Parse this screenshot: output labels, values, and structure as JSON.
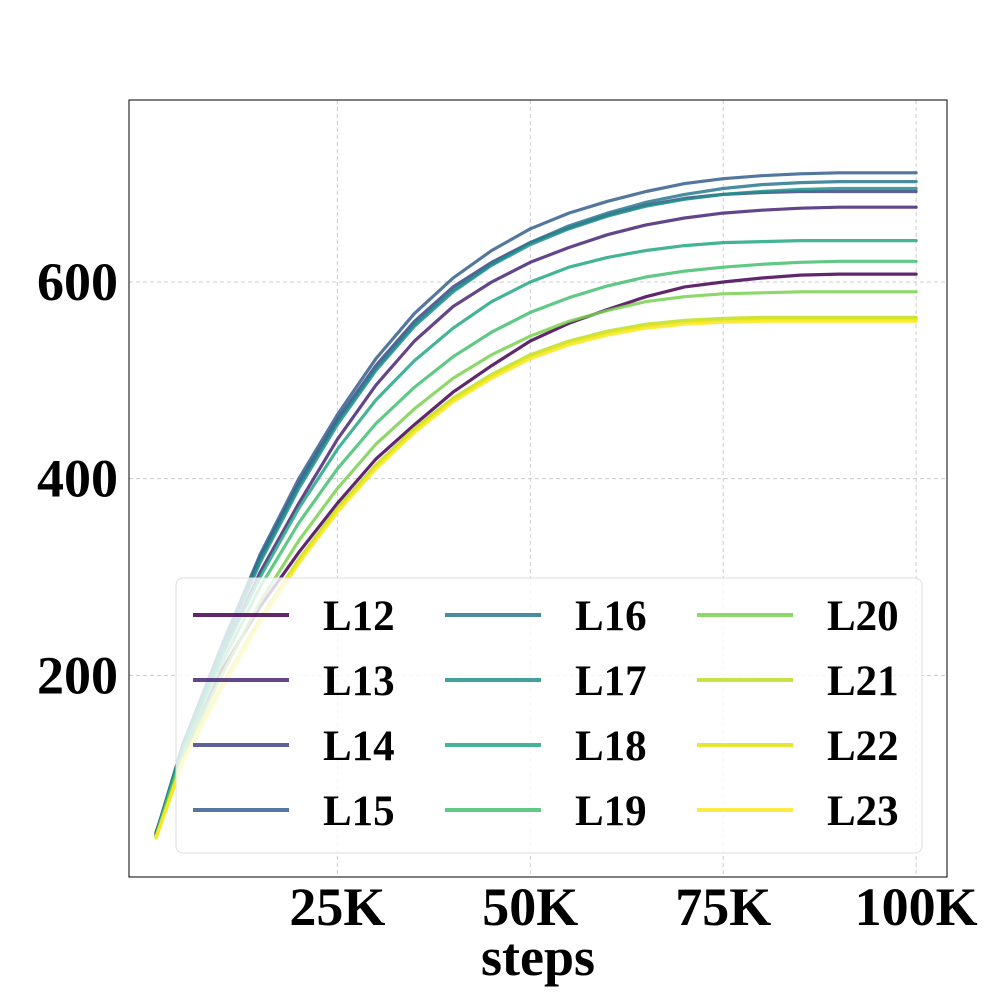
{
  "chart_data": {
    "type": "line",
    "title": "",
    "xlabel": "steps",
    "ylabel": "",
    "xlim": [
      -2000,
      104000
    ],
    "ylim": [
      -5,
      785
    ],
    "xticks": [
      {
        "value": 25000,
        "label": "25K"
      },
      {
        "value": 50000,
        "label": "50K"
      },
      {
        "value": 75000,
        "label": "75K"
      },
      {
        "value": 100000,
        "label": "100K"
      }
    ],
    "yticks": [
      {
        "value": 200,
        "label": "200"
      },
      {
        "value": 400,
        "label": "400"
      },
      {
        "value": 600,
        "label": "600"
      }
    ],
    "grid": true,
    "legend": {
      "location": "lower-right",
      "columns": 3
    },
    "x": [
      5000,
      10000,
      15000,
      20000,
      25000,
      30000,
      35000,
      40000,
      45000,
      50000,
      55000,
      60000,
      65000,
      70000,
      75000,
      80000,
      85000,
      90000,
      95000,
      100000
    ],
    "series": [
      {
        "name": "L12",
        "color": "#440154",
        "values": [
          120,
          205,
          270,
          325,
          375,
          420,
          455,
          488,
          515,
          540,
          558,
          572,
          585,
          595,
          600,
          604,
          607,
          608,
          608,
          608
        ]
      },
      {
        "name": "L13",
        "color": "#482475",
        "values": [
          125,
          220,
          305,
          375,
          440,
          495,
          540,
          575,
          600,
          620,
          635,
          648,
          658,
          665,
          670,
          673,
          675,
          676,
          676,
          676
        ]
      },
      {
        "name": "L14",
        "color": "#414487",
        "values": [
          130,
          228,
          320,
          395,
          460,
          515,
          560,
          595,
          620,
          640,
          655,
          668,
          678,
          685,
          689,
          691,
          692,
          692,
          692,
          692
        ]
      },
      {
        "name": "L15",
        "color": "#355f8d",
        "values": [
          130,
          230,
          323,
          400,
          465,
          522,
          568,
          604,
          632,
          654,
          670,
          682,
          692,
          700,
          705,
          708,
          710,
          711,
          711,
          711
        ]
      },
      {
        "name": "L16",
        "color": "#2a788e",
        "values": [
          128,
          228,
          318,
          393,
          458,
          512,
          557,
          592,
          618,
          640,
          657,
          670,
          681,
          689,
          695,
          699,
          701,
          702,
          702,
          702
        ]
      },
      {
        "name": "L17",
        "color": "#21918c",
        "values": [
          127,
          226,
          315,
          390,
          455,
          510,
          555,
          590,
          617,
          638,
          654,
          667,
          677,
          684,
          689,
          692,
          694,
          695,
          695,
          695
        ]
      },
      {
        "name": "L18",
        "color": "#22a884",
        "values": [
          125,
          220,
          300,
          370,
          430,
          480,
          520,
          553,
          580,
          600,
          615,
          625,
          632,
          637,
          640,
          641,
          642,
          642,
          642,
          642
        ]
      },
      {
        "name": "L19",
        "color": "#44bf70",
        "values": [
          122,
          212,
          290,
          355,
          410,
          456,
          493,
          524,
          549,
          569,
          584,
          596,
          605,
          611,
          615,
          618,
          620,
          621,
          621,
          621
        ]
      },
      {
        "name": "L20",
        "color": "#7ad151",
        "values": [
          118,
          200,
          275,
          337,
          390,
          435,
          471,
          502,
          526,
          545,
          560,
          571,
          580,
          585,
          588,
          589,
          590,
          590,
          590,
          590
        ]
      },
      {
        "name": "L21",
        "color": "#bddf26",
        "values": [
          114,
          190,
          258,
          318,
          370,
          414,
          451,
          482,
          506,
          526,
          540,
          550,
          557,
          561,
          563,
          564,
          564,
          564,
          564,
          564
        ]
      },
      {
        "name": "L22",
        "color": "#dde318",
        "values": [
          113,
          188,
          256,
          316,
          368,
          412,
          449,
          480,
          504,
          524,
          538,
          548,
          555,
          559,
          561,
          562,
          562,
          562,
          562,
          562
        ]
      },
      {
        "name": "L23",
        "color": "#fde725",
        "values": [
          112,
          186,
          254,
          314,
          366,
          410,
          447,
          478,
          502,
          522,
          536,
          546,
          553,
          557,
          559,
          560,
          560,
          560,
          560,
          560
        ]
      }
    ]
  }
}
